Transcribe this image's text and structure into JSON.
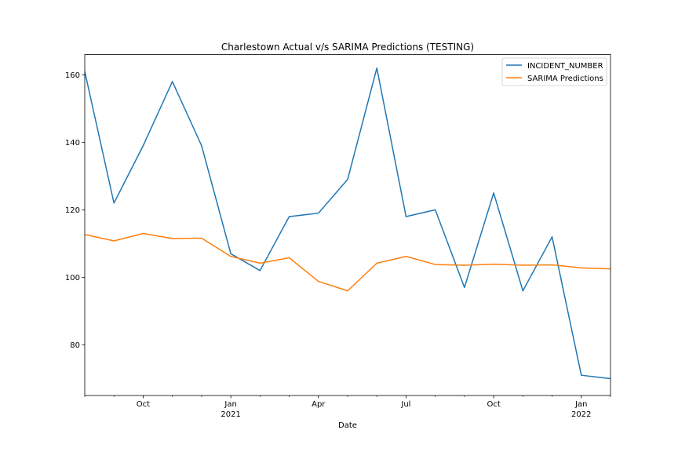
{
  "chart_data": {
    "type": "line",
    "title": "Charlestown Actual v/s SARIMA Predictions (TESTING)",
    "xlabel": "Date",
    "ylabel": "",
    "x": [
      "2020-08",
      "2020-09",
      "2020-10",
      "2020-11",
      "2020-12",
      "2021-01",
      "2021-02",
      "2021-03",
      "2021-04",
      "2021-05",
      "2021-06",
      "2021-07",
      "2021-08",
      "2021-09",
      "2021-10",
      "2021-11",
      "2021-12",
      "2022-01",
      "2022-02"
    ],
    "ylim": [
      65,
      166
    ],
    "yticks": [
      80,
      100,
      120,
      140,
      160
    ],
    "ytick_labels": [
      "80",
      "100",
      "120",
      "140",
      "160"
    ],
    "xticks_major": [
      {
        "x": "2020-10",
        "label": "Oct",
        "sub": ""
      },
      {
        "x": "2021-01",
        "label": "Jan",
        "sub": "2021"
      },
      {
        "x": "2021-04",
        "label": "Apr",
        "sub": ""
      },
      {
        "x": "2021-07",
        "label": "Jul",
        "sub": ""
      },
      {
        "x": "2021-10",
        "label": "Oct",
        "sub": ""
      },
      {
        "x": "2022-01",
        "label": "Jan",
        "sub": "2022"
      }
    ],
    "grid": false,
    "legend_position": "top-right",
    "series": [
      {
        "name": "INCIDENT_NUMBER",
        "color": "#1f77b4",
        "values": [
          161,
          122,
          139,
          158,
          139,
          107,
          102,
          118,
          119,
          129,
          162,
          118,
          120,
          97,
          125,
          96,
          112,
          71,
          70
        ]
      },
      {
        "name": "SARIMA Predictions",
        "color": "#ff7f0e",
        "values": [
          112.7,
          110.8,
          113.0,
          111.5,
          111.6,
          106.2,
          104.2,
          105.8,
          98.8,
          96.0,
          104.2,
          106.2,
          103.8,
          103.6,
          103.9,
          103.6,
          103.7,
          102.8,
          102.5
        ]
      }
    ]
  }
}
